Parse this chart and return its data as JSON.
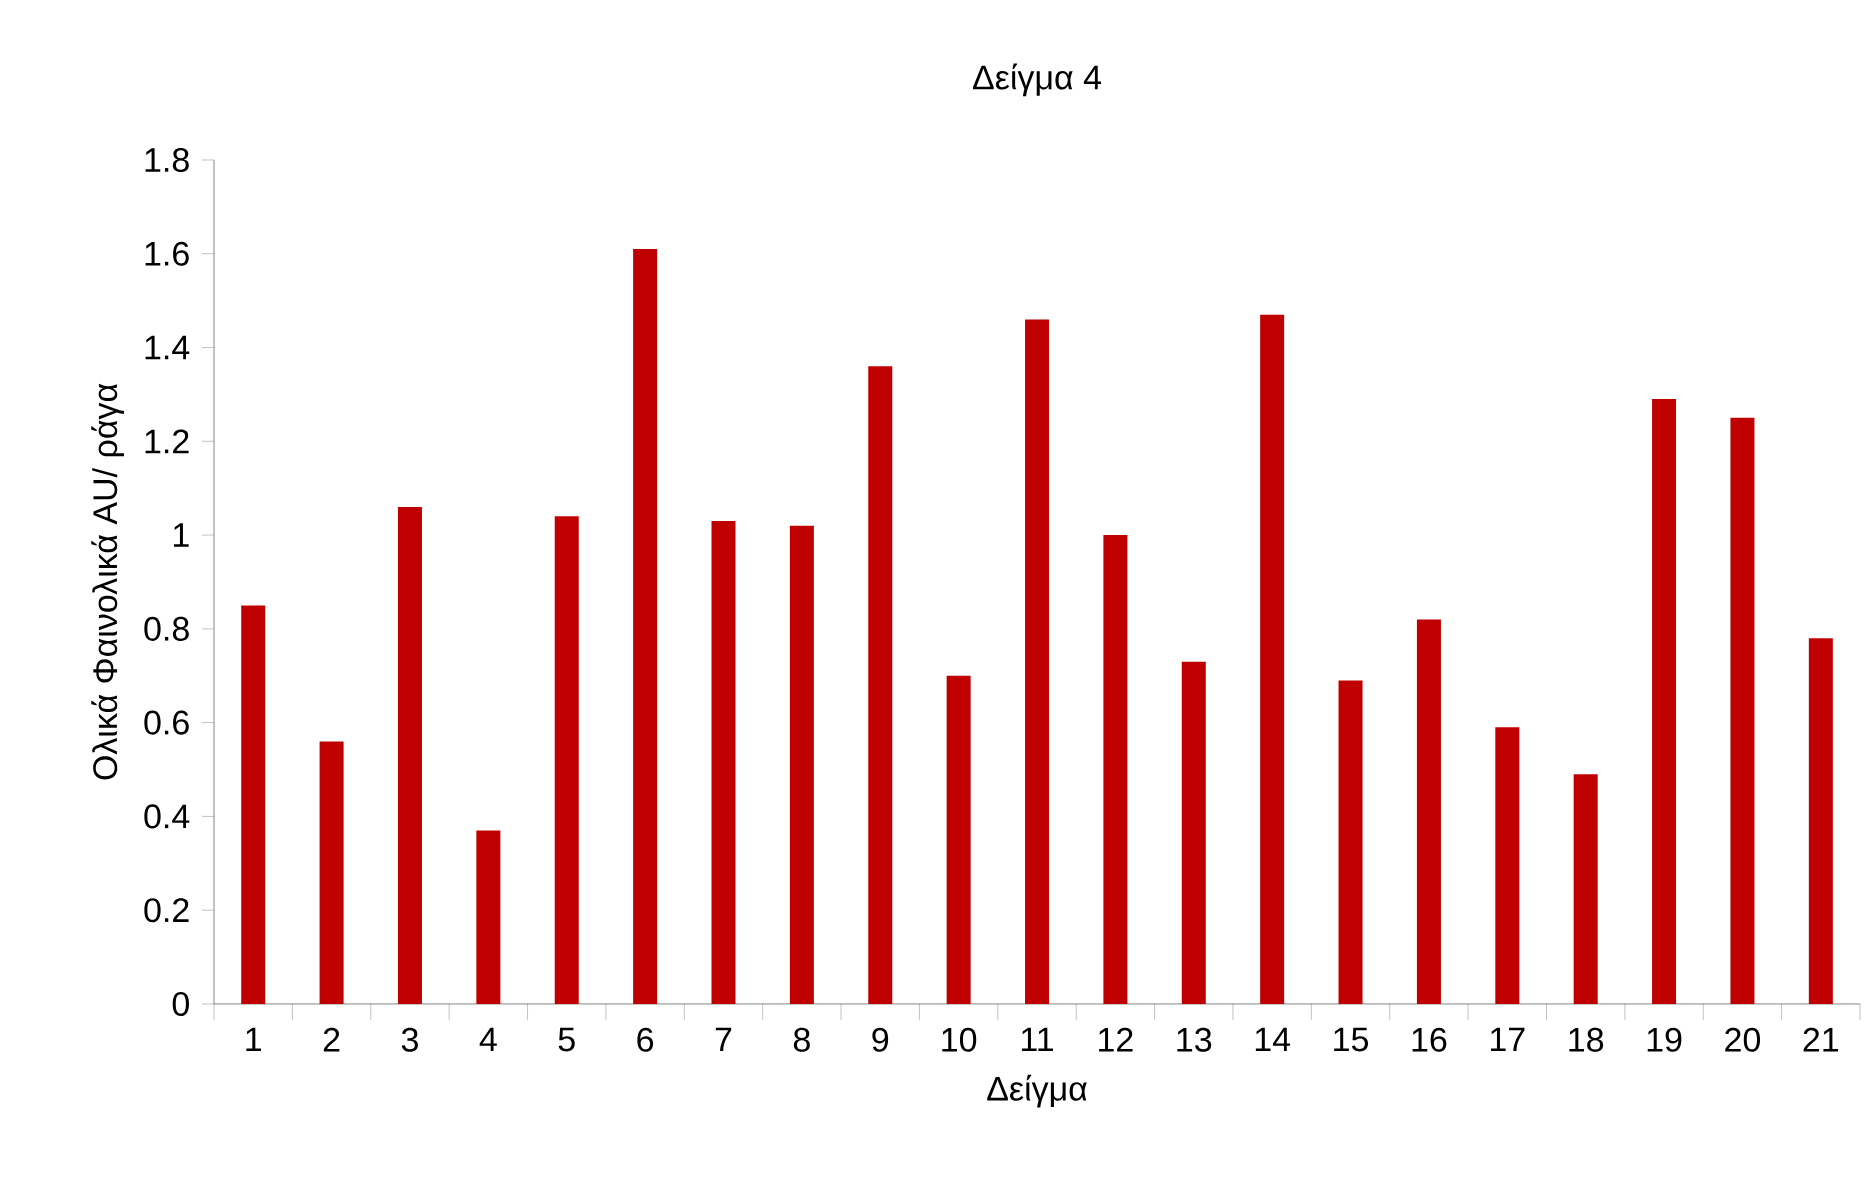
{
  "chart_data": {
    "type": "bar",
    "title": "Δείγμα 4",
    "xlabel": "Δείγμα",
    "ylabel": "Ολικά Φαινολικά AU/ ράγα",
    "categories": [
      "1",
      "2",
      "3",
      "4",
      "5",
      "6",
      "7",
      "8",
      "9",
      "10",
      "11",
      "12",
      "13",
      "14",
      "15",
      "16",
      "17",
      "18",
      "19",
      "20",
      "21"
    ],
    "values": [
      0.85,
      0.56,
      1.06,
      0.37,
      1.04,
      1.61,
      1.03,
      1.02,
      1.36,
      0.7,
      1.46,
      1.0,
      0.73,
      1.47,
      0.69,
      0.82,
      0.59,
      0.49,
      1.29,
      1.25,
      0.78
    ],
    "color": "#c00000",
    "ylim": [
      0,
      1.8
    ],
    "yticks": [
      0,
      0.2,
      0.4,
      0.6,
      0.8,
      1,
      1.2,
      1.4,
      1.6,
      1.8
    ]
  }
}
